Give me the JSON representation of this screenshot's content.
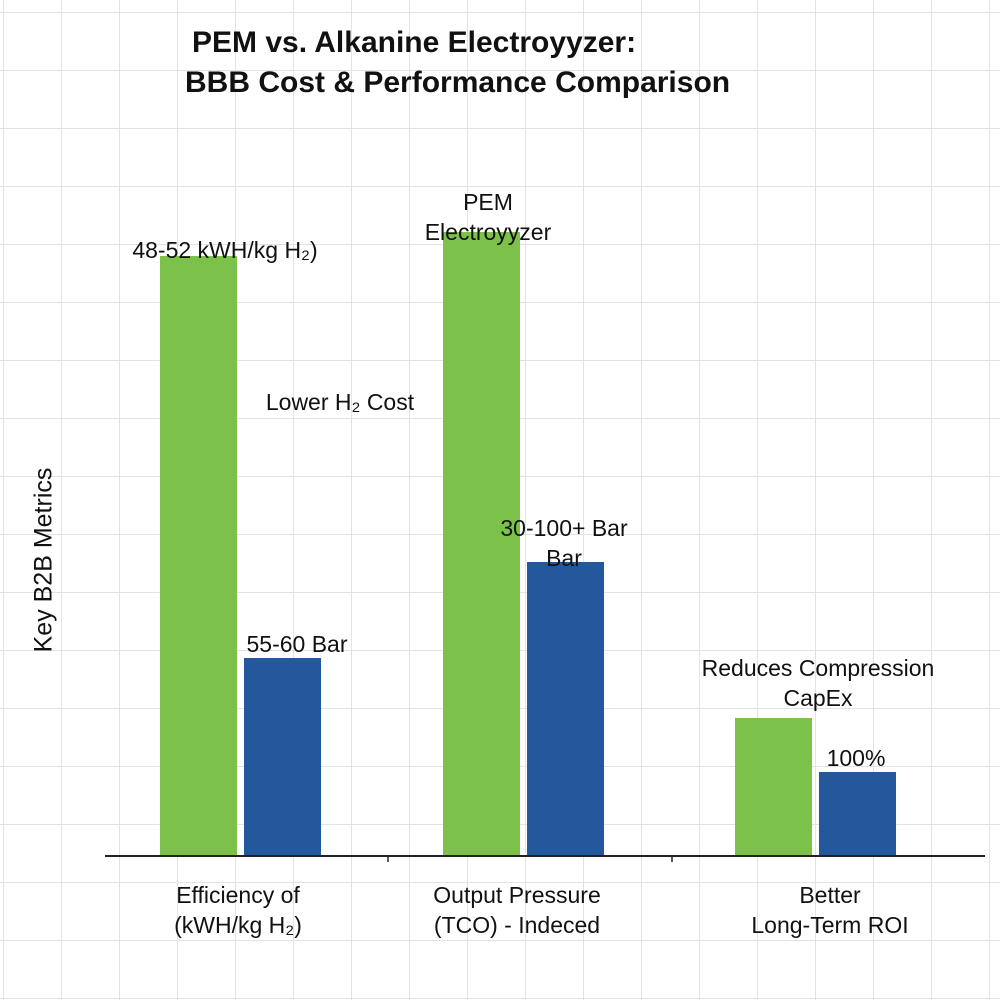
{
  "chart_data": {
    "type": "bar",
    "title": [
      "PEM vs. Alkanine Electroyyzer:",
      "BBB Cost & Performance Comparison"
    ],
    "ylabel": "Key B2B Metrics",
    "xlabel": "",
    "categories": [
      [
        "Efficiency of",
        "(kWH/kg H₂)"
      ],
      [
        "Output Pressure",
        "(TCO) - Indeced"
      ],
      [
        "Better",
        "Long-Term ROI"
      ]
    ],
    "series": [
      {
        "color": "#7cc24a",
        "values": [
          100,
          104,
          23
        ]
      },
      {
        "color": "#24589d",
        "values": [
          33,
          49,
          14
        ]
      }
    ],
    "ylim": [
      0,
      120
    ],
    "grid": true,
    "annotations": [
      [
        "48-52 kWH/kg H₂)"
      ],
      [
        "PEM",
        "Electroyyzer"
      ],
      [
        "Lower H₂ Cost"
      ],
      [
        "55-60 Bar"
      ],
      [
        "30-100+ Bar",
        "Bar"
      ],
      [
        "Reduces Compression",
        "CapEx"
      ],
      [
        "100%"
      ]
    ]
  }
}
